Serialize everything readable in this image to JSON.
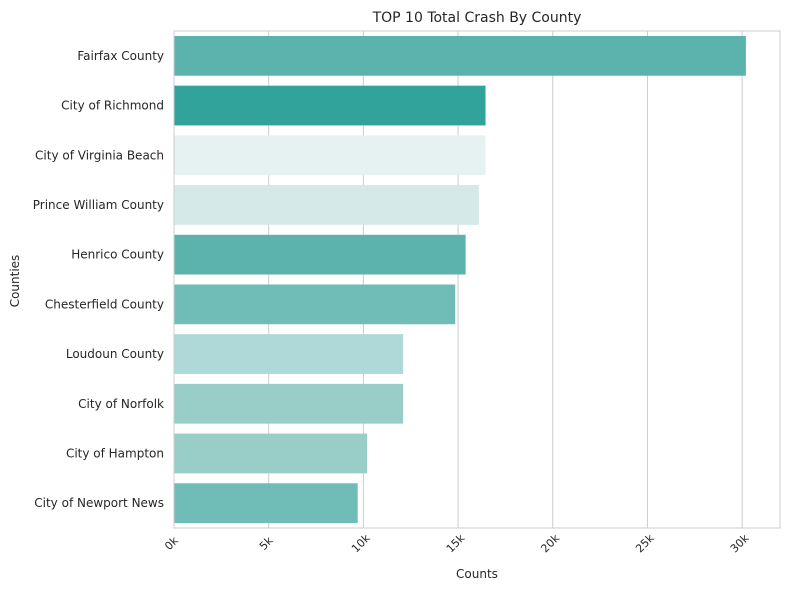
{
  "chart_data": {
    "type": "bar",
    "orientation": "horizontal",
    "title": "TOP 10 Total Crash By County",
    "xlabel": "Counts",
    "ylabel": "Counties",
    "categories": [
      "Fairfax County",
      "City of Richmond",
      "City of Virginia Beach",
      "Prince William County",
      "Henrico County",
      "Chesterfield County",
      "Loudoun County",
      "City of Norfolk",
      "City of Hampton",
      "City of Newport News"
    ],
    "values": [
      30200,
      16450,
      16450,
      16100,
      15400,
      14850,
      12100,
      12100,
      10200,
      9700
    ],
    "bar_colors": [
      "#5cb3ae",
      "#31a39a",
      "#e6f2f1",
      "#d5e9e8",
      "#5cb3ae",
      "#70bdb7",
      "#afd9d8",
      "#98cdc8",
      "#98cdc8",
      "#70bdb7"
    ],
    "xlim": [
      0,
      32000
    ],
    "xticks": [
      0,
      5000,
      10000,
      15000,
      20000,
      25000,
      30000
    ],
    "xtick_labels": [
      "0k",
      "5k",
      "10k",
      "15k",
      "20k",
      "25k",
      "30k"
    ],
    "grid": "vertical",
    "legend": "none"
  }
}
